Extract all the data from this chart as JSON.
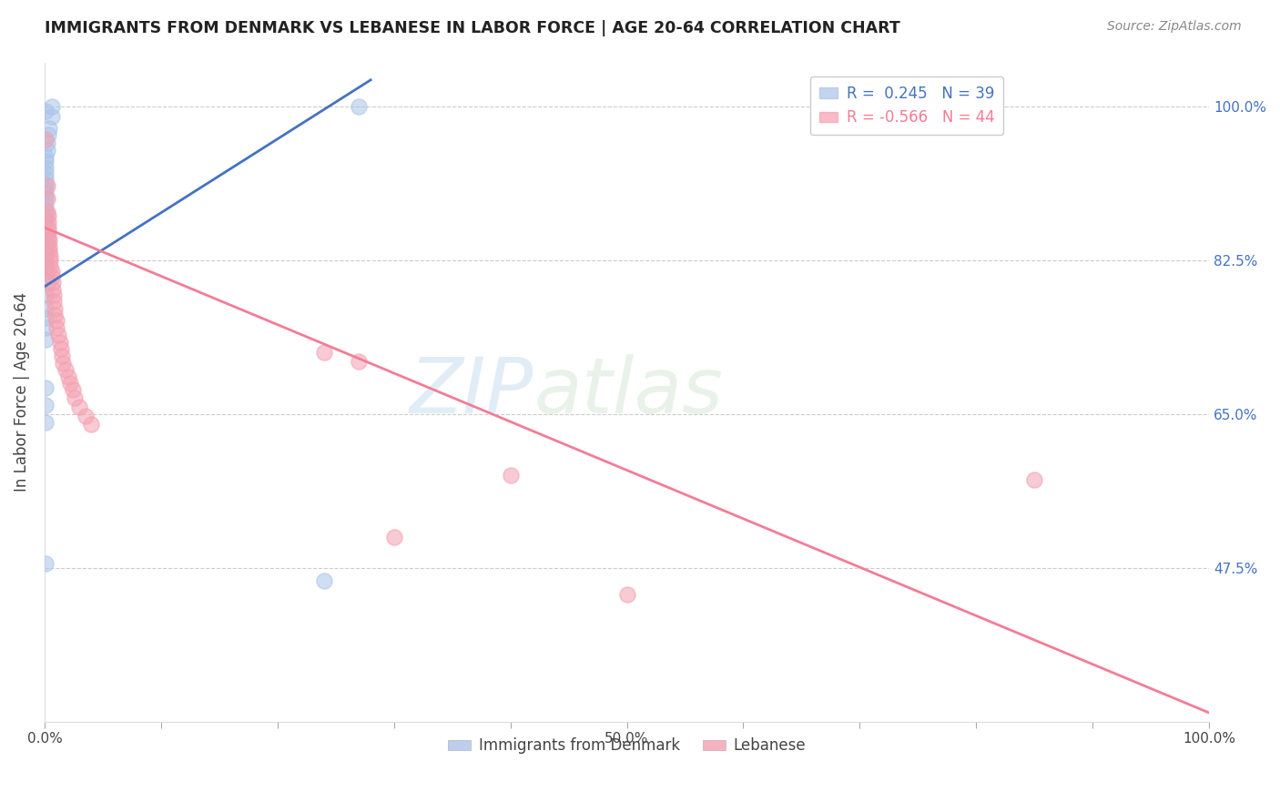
{
  "title": "IMMIGRANTS FROM DENMARK VS LEBANESE IN LABOR FORCE | AGE 20-64 CORRELATION CHART",
  "source": "Source: ZipAtlas.com",
  "ylabel": "In Labor Force | Age 20-64",
  "xlim": [
    0.0,
    1.0
  ],
  "ylim": [
    0.3,
    1.05
  ],
  "yticks": [
    0.475,
    0.65,
    0.825,
    1.0
  ],
  "yticklabels": [
    "47.5%",
    "65.0%",
    "82.5%",
    "100.0%"
  ],
  "xtick_positions": [
    0.0,
    0.1,
    0.2,
    0.3,
    0.4,
    0.5,
    0.6,
    0.7,
    0.8,
    0.9,
    1.0
  ],
  "xticklabels": [
    "0.0%",
    "",
    "",
    "",
    "",
    "50.0%",
    "",
    "",
    "",
    "",
    "100.0%"
  ],
  "denmark_R": 0.245,
  "denmark_N": 39,
  "lebanese_R": -0.566,
  "lebanese_N": 44,
  "denmark_color": "#aac4e8",
  "lebanese_color": "#f4a0b0",
  "denmark_line_color": "#4472c4",
  "lebanese_line_color": "#f47c96",
  "watermark_zip": "ZIP",
  "watermark_atlas": "atlas",
  "denmark_x": [
    0.001,
    0.006,
    0.006,
    0.004,
    0.003,
    0.002,
    0.002,
    0.001,
    0.001,
    0.001,
    0.001,
    0.001,
    0.001,
    0.001,
    0.001,
    0.001,
    0.001,
    0.001,
    0.001,
    0.001,
    0.001,
    0.002,
    0.002,
    0.001,
    0.001,
    0.001,
    0.002,
    0.002,
    0.001,
    0.001,
    0.001,
    0.001,
    0.001,
    0.001,
    0.001,
    0.001,
    0.001,
    0.24,
    0.27
  ],
  "denmark_y": [
    0.995,
    1.0,
    0.988,
    0.975,
    0.968,
    0.958,
    0.95,
    0.943,
    0.938,
    0.93,
    0.924,
    0.918,
    0.912,
    0.906,
    0.9,
    0.895,
    0.888,
    0.882,
    0.876,
    0.87,
    0.855,
    0.848,
    0.84,
    0.832,
    0.825,
    0.818,
    0.812,
    0.8,
    0.785,
    0.77,
    0.76,
    0.748,
    0.735,
    0.68,
    0.66,
    0.64,
    0.48,
    0.46,
    1.0
  ],
  "lebanese_x": [
    0.001,
    0.002,
    0.002,
    0.002,
    0.003,
    0.003,
    0.003,
    0.003,
    0.003,
    0.004,
    0.004,
    0.004,
    0.005,
    0.005,
    0.005,
    0.006,
    0.006,
    0.007,
    0.007,
    0.008,
    0.008,
    0.009,
    0.009,
    0.01,
    0.01,
    0.012,
    0.013,
    0.014,
    0.015,
    0.016,
    0.018,
    0.02,
    0.022,
    0.024,
    0.026,
    0.03,
    0.035,
    0.04,
    0.24,
    0.27,
    0.4,
    0.5,
    0.85,
    0.3
  ],
  "lebanese_y": [
    0.962,
    0.91,
    0.895,
    0.88,
    0.875,
    0.868,
    0.862,
    0.858,
    0.852,
    0.848,
    0.84,
    0.835,
    0.83,
    0.825,
    0.818,
    0.812,
    0.806,
    0.8,
    0.792,
    0.785,
    0.778,
    0.77,
    0.763,
    0.756,
    0.748,
    0.74,
    0.732,
    0.724,
    0.716,
    0.708,
    0.7,
    0.692,
    0.685,
    0.678,
    0.668,
    0.658,
    0.648,
    0.638,
    0.72,
    0.71,
    0.58,
    0.445,
    0.575,
    0.51
  ],
  "dk_line_x0": 0.0,
  "dk_line_x1": 0.28,
  "dk_line_y0": 0.795,
  "dk_line_y1": 1.03,
  "lb_line_x0": 0.0,
  "lb_line_x1": 1.0,
  "lb_line_y0": 0.862,
  "lb_line_y1": 0.31
}
